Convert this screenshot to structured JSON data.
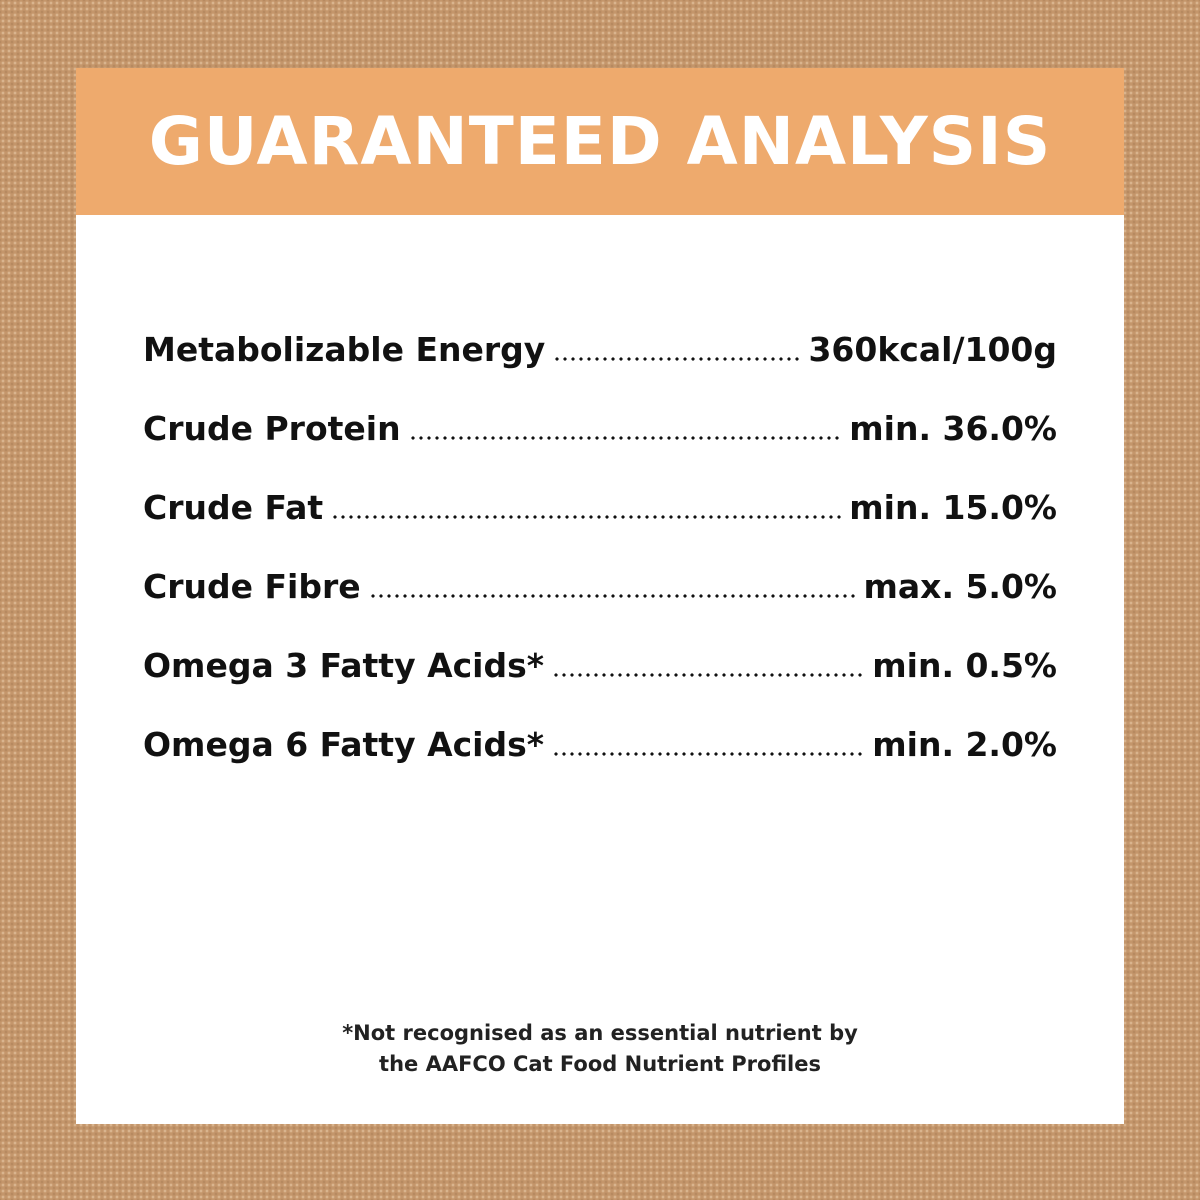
{
  "header": {
    "title": "GUARANTEED ANALYSIS"
  },
  "table": {
    "rows": [
      [
        "Metabolizable Energy",
        "360kcal/100g"
      ],
      [
        "Crude Protein",
        "min. 36.0%"
      ],
      [
        "Crude Fat",
        "min. 15.0%"
      ],
      [
        "Crude Fibre",
        "max. 5.0%"
      ],
      [
        "Omega 3 Fatty Acids*",
        "min. 0.5%"
      ],
      [
        "Omega 6 Fatty Acids*",
        "min. 2.0%"
      ]
    ]
  },
  "footnote": {
    "lines": [
      "*Not recognised as an essential nutrient by",
      "the AAFCO Cat Food Nutrient Profiles"
    ]
  }
}
